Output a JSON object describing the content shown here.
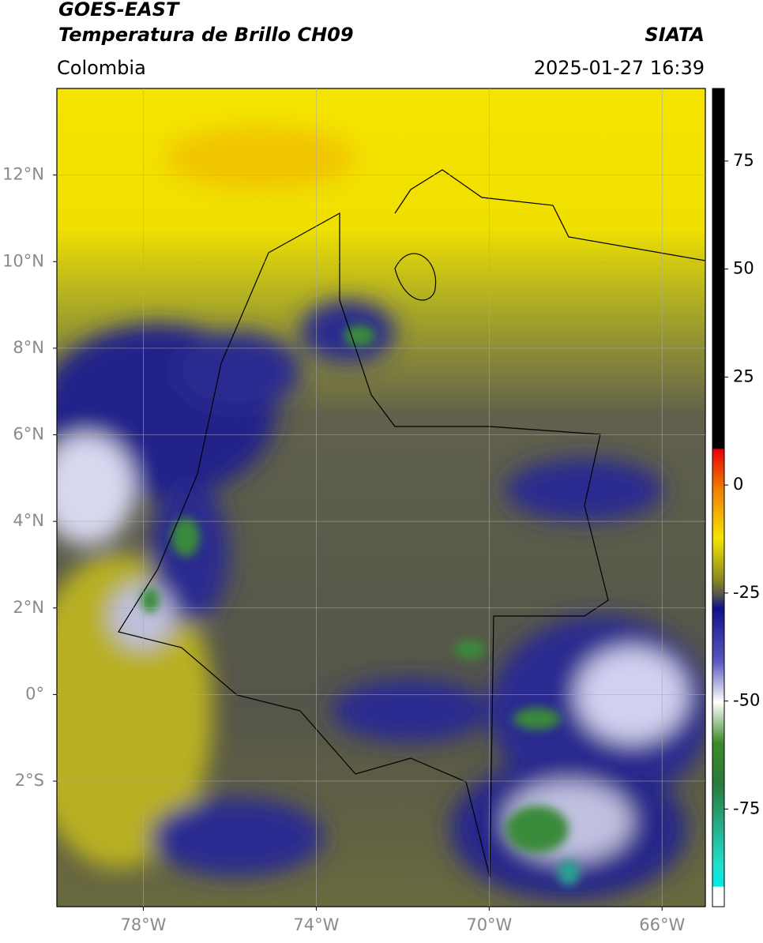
{
  "header": {
    "satellite": "GOES-EAST",
    "product": "Temperatura de Brillo CH09",
    "source": "SIATA",
    "region": "Colombia",
    "datetime": "2025-01-27 16:39"
  },
  "map": {
    "lonlim": [
      -80,
      -65
    ],
    "latlim": [
      -4.9,
      14
    ],
    "grid": true,
    "lonticks": [
      {
        "value": -78,
        "label": "78°W"
      },
      {
        "value": -74,
        "label": "74°W"
      },
      {
        "value": -70,
        "label": "70°W"
      },
      {
        "value": -66,
        "label": "66°W"
      }
    ],
    "latticks": [
      {
        "value": 12,
        "label": "12°N"
      },
      {
        "value": 10,
        "label": "10°N"
      },
      {
        "value": 8,
        "label": "8°N"
      },
      {
        "value": 6,
        "label": "6°N"
      },
      {
        "value": 4,
        "label": "4°N"
      },
      {
        "value": 2,
        "label": "2°N"
      },
      {
        "value": 0,
        "label": "0°"
      },
      {
        "value": -2,
        "label": "2°S"
      }
    ]
  },
  "colorbar": {
    "lim": [
      -97.6,
      91.8
    ],
    "ticks": [
      75,
      50,
      25,
      0,
      -25,
      -50,
      -75
    ]
  }
}
